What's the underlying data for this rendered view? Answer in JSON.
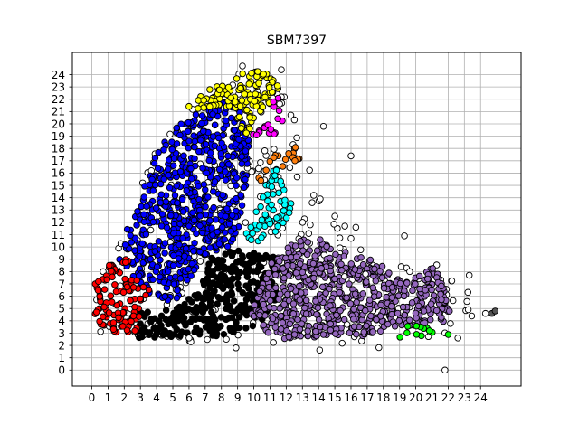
{
  "chart_data": {
    "type": "scatter",
    "title": "SBM7397",
    "xlabel": "",
    "ylabel": "",
    "xlim": [
      -1.2,
      26.5
    ],
    "ylim": [
      -1.3,
      25.8
    ],
    "grid": true,
    "x_ticks": [
      0,
      1,
      2,
      3,
      4,
      5,
      6,
      7,
      8,
      9,
      10,
      11,
      12,
      13,
      14,
      15,
      16,
      17,
      18,
      19,
      20,
      21,
      22,
      23,
      24
    ],
    "y_ticks": [
      0,
      1,
      2,
      3,
      4,
      5,
      6,
      7,
      8,
      9,
      10,
      11,
      12,
      13,
      14,
      15,
      16,
      17,
      18,
      19,
      20,
      21,
      22,
      23,
      24
    ],
    "marker_edge_color": "#000000",
    "clusters": [
      {
        "label": "-1",
        "color": "#ffffff",
        "polygon": [
          [
            -0.1,
            3.8
          ],
          [
            0.7,
            8.8
          ],
          [
            2.8,
            14.5
          ],
          [
            4.4,
            19.5
          ],
          [
            7.5,
            22.8
          ],
          [
            9.3,
            24.3
          ],
          [
            11.6,
            24.3
          ],
          [
            12.6,
            20.5
          ],
          [
            13.4,
            18.2
          ],
          [
            14.4,
            15.2
          ],
          [
            15.8,
            12.2
          ],
          [
            16.8,
            10.5
          ],
          [
            18.6,
            9.2
          ],
          [
            21.5,
            8.6
          ],
          [
            22.8,
            7.6
          ],
          [
            23.5,
            5.5
          ],
          [
            23.8,
            4.2
          ],
          [
            22.7,
            2.8
          ],
          [
            20.2,
            2.1
          ],
          [
            17.2,
            1.6
          ],
          [
            14.5,
            1.6
          ],
          [
            10.2,
            1.6
          ],
          [
            7.2,
            2.1
          ],
          [
            4.2,
            1.9
          ],
          [
            1.8,
            2.2
          ],
          [
            0.4,
            2.8
          ]
        ],
        "count": 260
      },
      {
        "label": "0",
        "color": "#0000ff",
        "polygon": [
          [
            1.5,
            9.2
          ],
          [
            2.5,
            12.5
          ],
          [
            3.5,
            16.0
          ],
          [
            4.5,
            19.2
          ],
          [
            6.2,
            20.8
          ],
          [
            7.5,
            21.8
          ],
          [
            9.2,
            21.7
          ],
          [
            9.7,
            19.0
          ],
          [
            9.6,
            16.0
          ],
          [
            9.6,
            13.0
          ],
          [
            8.5,
            10.0
          ],
          [
            6.8,
            8.8
          ],
          [
            5.0,
            5.3
          ],
          [
            3.6,
            6.1
          ],
          [
            2.8,
            7.2
          ]
        ],
        "count": 620
      },
      {
        "label": "1",
        "color": "#000000",
        "polygon": [
          [
            2.3,
            4.6
          ],
          [
            3.2,
            4.8
          ],
          [
            4.9,
            4.9
          ],
          [
            6.6,
            6.3
          ],
          [
            7.2,
            9.2
          ],
          [
            8.6,
            9.8
          ],
          [
            10.2,
            9.6
          ],
          [
            11.3,
            9.2
          ],
          [
            11.6,
            6.5
          ],
          [
            10.9,
            4.2
          ],
          [
            9.5,
            3.2
          ],
          [
            7.8,
            2.7
          ],
          [
            5.6,
            2.6
          ],
          [
            4.0,
            2.2
          ],
          [
            2.8,
            2.6
          ]
        ],
        "count": 330
      },
      {
        "label": "2",
        "color": "#ff0000",
        "polygon": [
          [
            0.2,
            4.1
          ],
          [
            0.2,
            7.5
          ],
          [
            1.2,
            9.0
          ],
          [
            2.2,
            9.0
          ],
          [
            3.0,
            7.1
          ],
          [
            3.8,
            6.8
          ],
          [
            3.0,
            5.0
          ],
          [
            2.8,
            3.0
          ],
          [
            1.5,
            2.9
          ],
          [
            0.6,
            3.4
          ]
        ],
        "count": 110
      },
      {
        "label": "3",
        "color": "#9467bd",
        "polygon": [
          [
            9.8,
            4.6
          ],
          [
            11.0,
            8.8
          ],
          [
            12.6,
            10.6
          ],
          [
            14.1,
            10.6
          ],
          [
            15.6,
            9.6
          ],
          [
            17.4,
            8.9
          ],
          [
            19.6,
            7.2
          ],
          [
            21.1,
            8.6
          ],
          [
            22.3,
            5.0
          ],
          [
            21.6,
            3.6
          ],
          [
            19.6,
            3.6
          ],
          [
            17.6,
            3.0
          ],
          [
            15.6,
            2.5
          ],
          [
            13.1,
            2.6
          ],
          [
            11.1,
            2.5
          ]
        ],
        "count": 620
      },
      {
        "label": "4",
        "color": "#ffff00",
        "polygon": [
          [
            5.6,
            21.0
          ],
          [
            7.2,
            22.8
          ],
          [
            8.6,
            23.6
          ],
          [
            9.6,
            24.4
          ],
          [
            10.8,
            24.2
          ],
          [
            11.6,
            23.0
          ],
          [
            11.0,
            21.6
          ],
          [
            10.2,
            20.4
          ],
          [
            9.4,
            18.9
          ],
          [
            8.9,
            20.8
          ],
          [
            7.8,
            21.4
          ]
        ],
        "count": 120
      },
      {
        "label": "5",
        "color": "#ff00ff",
        "polygon": [
          [
            9.9,
            18.8
          ],
          [
            10.2,
            20.9
          ],
          [
            11.4,
            22.3
          ],
          [
            12.1,
            21.2
          ],
          [
            11.7,
            19.5
          ],
          [
            11.0,
            18.6
          ],
          [
            10.2,
            18.3
          ]
        ],
        "count": 18
      },
      {
        "label": "6",
        "color": "#ff7f0e",
        "polygon": [
          [
            10.0,
            15.2
          ],
          [
            11.3,
            17.7
          ],
          [
            12.6,
            18.1
          ],
          [
            13.0,
            17.0
          ],
          [
            12.0,
            16.5
          ],
          [
            11.2,
            16.6
          ],
          [
            10.5,
            15.4
          ]
        ],
        "count": 18
      },
      {
        "label": "7",
        "color": "#00ffff",
        "polygon": [
          [
            9.2,
            10.2
          ],
          [
            10.3,
            13.8
          ],
          [
            11.3,
            16.6
          ],
          [
            12.1,
            14.6
          ],
          [
            12.6,
            14.2
          ],
          [
            12.0,
            11.5
          ],
          [
            10.8,
            10.4
          ],
          [
            9.6,
            10.2
          ]
        ],
        "count": 60
      },
      {
        "label": "8",
        "color": "#00ff00",
        "polygon": [
          [
            18.0,
            2.2
          ],
          [
            19.5,
            3.6
          ],
          [
            20.5,
            4.0
          ],
          [
            21.3,
            3.3
          ],
          [
            22.1,
            2.9
          ],
          [
            20.5,
            2.6
          ],
          [
            19.1,
            2.3
          ]
        ],
        "count": 12
      },
      {
        "label": "9",
        "color": "#555555",
        "polygon": [
          [
            24.7,
            4.6
          ],
          [
            24.9,
            4.8
          ]
        ],
        "count": 1
      }
    ],
    "outliers_noise": [
      [
        9.3,
        24.7
      ],
      [
        11.7,
        24.4
      ],
      [
        14.3,
        19.8
      ],
      [
        16.0,
        17.4
      ],
      [
        15.0,
        12.5
      ],
      [
        16.3,
        11.6
      ],
      [
        16.9,
        7.8
      ],
      [
        19.1,
        8.4
      ],
      [
        19.3,
        10.9
      ],
      [
        23.3,
        7.7
      ],
      [
        24.3,
        4.6
      ],
      [
        22.6,
        2.6
      ],
      [
        21.8,
        0.0
      ],
      [
        16.0,
        10.7
      ],
      [
        15.6,
        7.6
      ],
      [
        13.7,
        14.2
      ],
      [
        13.6,
        13.6
      ],
      [
        14.1,
        13.9
      ],
      [
        8.3,
        2.5
      ],
      [
        8.9,
        1.8
      ],
      [
        6.0,
        2.6
      ]
    ]
  }
}
